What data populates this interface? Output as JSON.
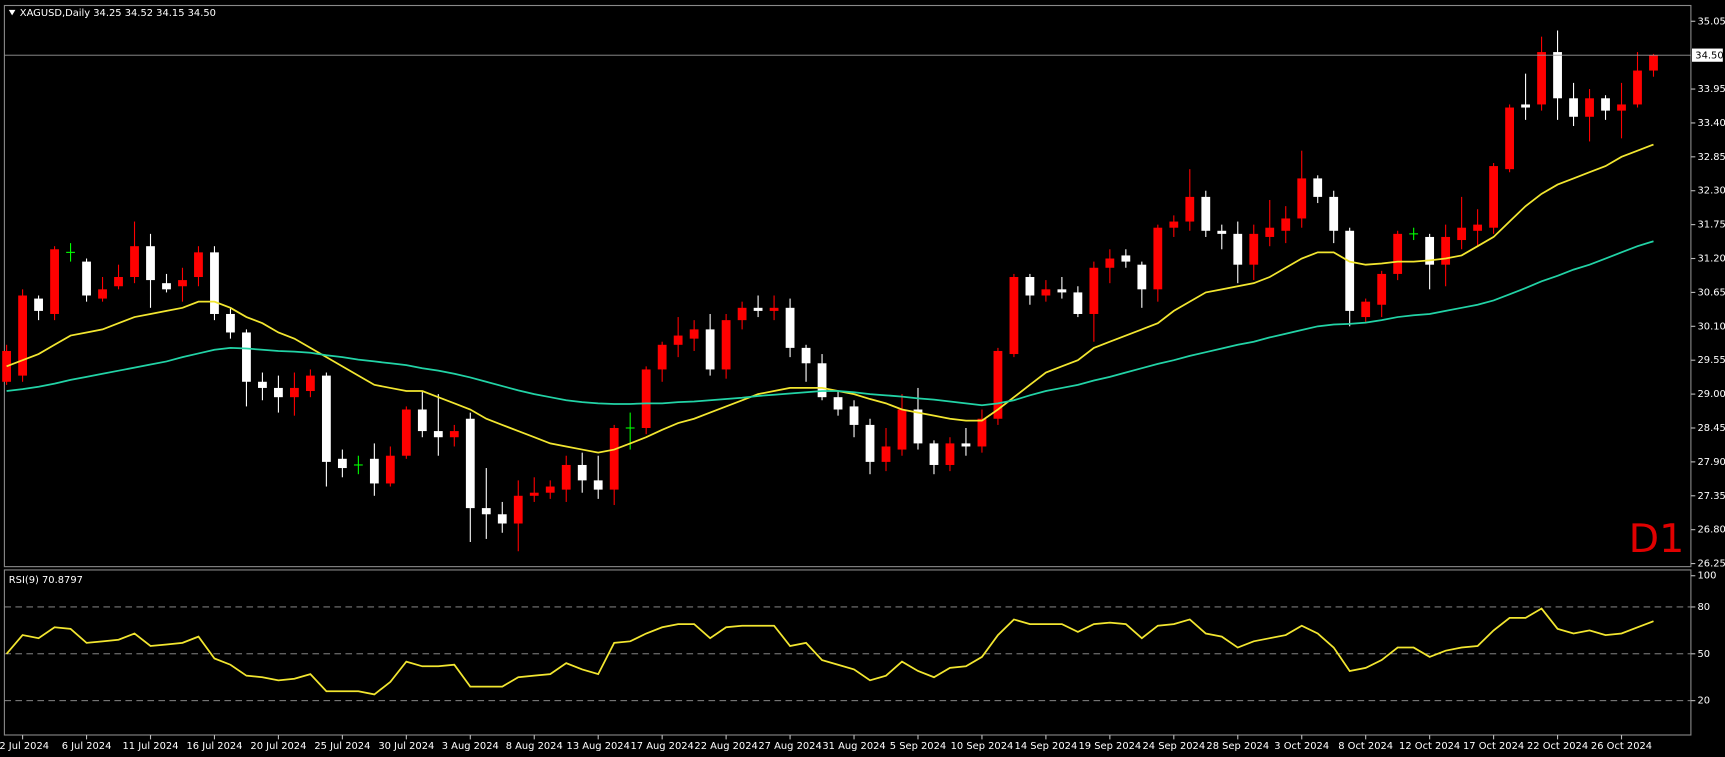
{
  "chart_data": [
    {
      "type": "candlestick",
      "title": "XAGUSD,Daily  34.25 34.52 34.15 34.50",
      "timeframe_label": "D1",
      "categories": [
        null,
        "2 Jul 2024",
        null,
        null,
        null,
        "6 Jul 2024",
        null,
        null,
        null,
        "11 Jul 2024",
        null,
        null,
        null,
        "16 Jul 2024",
        null,
        null,
        null,
        "20 Jul 2024",
        null,
        null,
        null,
        "25 Jul 2024",
        null,
        null,
        null,
        "30 Jul 2024",
        null,
        null,
        null,
        "3 Aug 2024",
        null,
        null,
        null,
        "8 Aug 2024",
        null,
        null,
        null,
        "13 Aug 2024",
        null,
        null,
        null,
        "17 Aug 2024",
        null,
        null,
        null,
        "22 Aug 2024",
        null,
        null,
        null,
        "27 Aug 2024",
        null,
        null,
        null,
        "31 Aug 2024",
        null,
        null,
        null,
        "5 Sep 2024",
        null,
        null,
        null,
        "10 Sep 2024",
        null,
        null,
        null,
        "14 Sep 2024",
        null,
        null,
        null,
        "19 Sep 2024",
        null,
        null,
        null,
        "24 Sep 2024",
        null,
        null,
        null,
        "28 Sep 2024",
        null,
        null,
        null,
        "3 Oct 2024",
        null,
        null,
        null,
        "8 Oct 2024",
        null,
        null,
        null,
        "12 Oct 2024",
        null,
        null,
        null,
        "17 Oct 2024",
        null,
        null,
        null,
        "22 Oct 2024",
        null,
        null,
        null,
        "26 Oct 2024",
        null,
        null
      ],
      "open": [
        29.2,
        29.3,
        30.55,
        30.3,
        31.3,
        31.15,
        30.55,
        30.75,
        30.9,
        31.4,
        30.8,
        30.75,
        30.9,
        31.3,
        30.3,
        30.0,
        29.2,
        29.1,
        28.95,
        29.05,
        29.3,
        27.95,
        27.85,
        27.95,
        27.55,
        28.0,
        28.75,
        28.4,
        28.3,
        28.6,
        27.15,
        27.05,
        26.9,
        27.35,
        27.4,
        27.45,
        27.85,
        27.6,
        27.45,
        28.45,
        28.45,
        29.4,
        29.8,
        29.9,
        30.05,
        29.4,
        30.2,
        30.4,
        30.35,
        30.4,
        29.75,
        29.5,
        28.95,
        28.8,
        28.5,
        27.9,
        28.1,
        28.75,
        28.2,
        27.85,
        28.2,
        28.15,
        28.6,
        29.65,
        30.9,
        30.6,
        30.7,
        30.65,
        30.3,
        31.05,
        31.25,
        31.1,
        30.7,
        31.7,
        31.8,
        32.2,
        31.65,
        31.6,
        31.1,
        31.55,
        31.65,
        31.85,
        32.5,
        32.2,
        31.65,
        30.25,
        30.45,
        30.95,
        31.6,
        31.55,
        31.1,
        31.5,
        31.65,
        31.7,
        32.65,
        33.7,
        33.7,
        34.55,
        33.8,
        33.5,
        33.8,
        33.6,
        33.7,
        34.25
      ],
      "high": [
        29.8,
        30.7,
        30.6,
        31.4,
        31.45,
        31.2,
        30.9,
        31.1,
        31.8,
        31.6,
        30.95,
        31.05,
        31.4,
        31.4,
        30.4,
        30.05,
        29.35,
        29.3,
        29.35,
        29.4,
        29.35,
        28.1,
        28.0,
        28.2,
        28.15,
        28.8,
        29.05,
        29.0,
        28.5,
        28.7,
        27.8,
        27.25,
        27.6,
        27.65,
        27.6,
        28.0,
        28.05,
        28.0,
        28.5,
        28.7,
        29.45,
        29.85,
        30.25,
        30.2,
        30.3,
        30.3,
        30.5,
        30.6,
        30.6,
        30.55,
        29.8,
        29.65,
        29.05,
        28.9,
        28.6,
        28.45,
        29.0,
        29.1,
        28.25,
        28.3,
        28.45,
        28.75,
        29.75,
        30.95,
        30.95,
        30.85,
        30.9,
        30.75,
        31.15,
        31.35,
        31.35,
        31.15,
        31.75,
        31.9,
        32.65,
        32.3,
        31.75,
        31.8,
        31.75,
        32.15,
        32.05,
        32.95,
        32.55,
        32.3,
        31.7,
        30.55,
        31.0,
        31.65,
        31.7,
        31.6,
        31.75,
        32.2,
        32.0,
        32.75,
        33.7,
        34.2,
        34.8,
        34.9,
        34.05,
        33.95,
        33.85,
        34.05,
        34.55,
        34.52
      ],
      "low": [
        29.15,
        29.2,
        30.2,
        30.2,
        31.15,
        30.5,
        30.5,
        30.7,
        30.8,
        30.4,
        30.65,
        30.5,
        30.75,
        30.2,
        29.9,
        28.8,
        28.9,
        28.7,
        28.65,
        28.95,
        27.5,
        27.65,
        27.7,
        27.35,
        27.5,
        27.95,
        28.3,
        28.0,
        28.15,
        26.6,
        26.65,
        26.75,
        26.45,
        27.25,
        27.3,
        27.25,
        27.4,
        27.3,
        27.2,
        28.1,
        28.35,
        29.2,
        29.6,
        29.7,
        29.3,
        29.25,
        30.05,
        30.25,
        30.2,
        29.6,
        29.2,
        28.9,
        28.65,
        28.3,
        27.7,
        27.75,
        28.0,
        28.1,
        27.7,
        27.75,
        28.0,
        28.05,
        28.5,
        29.6,
        30.45,
        30.5,
        30.55,
        30.25,
        29.85,
        30.8,
        31.05,
        30.4,
        30.5,
        31.55,
        31.65,
        31.55,
        31.35,
        30.8,
        30.85,
        31.4,
        31.45,
        31.7,
        32.1,
        31.45,
        30.1,
        30.15,
        30.25,
        30.85,
        31.5,
        30.7,
        30.75,
        31.35,
        31.4,
        31.6,
        32.6,
        33.45,
        33.6,
        33.45,
        33.35,
        33.1,
        33.45,
        33.15,
        33.65,
        34.15
      ],
      "close": [
        29.7,
        30.6,
        30.35,
        31.35,
        31.3,
        30.6,
        30.7,
        30.9,
        31.4,
        30.85,
        30.7,
        30.85,
        31.3,
        30.3,
        30.0,
        29.2,
        29.1,
        28.95,
        29.1,
        29.3,
        27.9,
        27.8,
        27.85,
        27.55,
        28.0,
        28.75,
        28.4,
        28.3,
        28.4,
        27.15,
        27.05,
        26.9,
        27.35,
        27.4,
        27.5,
        27.85,
        27.6,
        27.45,
        28.45,
        28.45,
        29.4,
        29.8,
        29.95,
        30.05,
        29.4,
        30.2,
        30.4,
        30.35,
        30.4,
        29.75,
        29.5,
        28.95,
        28.75,
        28.5,
        27.9,
        28.15,
        28.75,
        28.2,
        27.85,
        28.2,
        28.15,
        28.6,
        29.7,
        30.9,
        30.6,
        30.7,
        30.65,
        30.3,
        31.05,
        31.2,
        31.15,
        30.7,
        31.7,
        31.8,
        32.2,
        31.65,
        31.6,
        31.1,
        31.6,
        31.7,
        31.85,
        32.5,
        32.2,
        31.65,
        30.35,
        30.5,
        30.95,
        31.6,
        31.6,
        31.1,
        31.55,
        31.7,
        31.75,
        32.7,
        33.65,
        33.65,
        34.55,
        33.8,
        33.5,
        33.8,
        33.6,
        33.7,
        34.25,
        34.5
      ],
      "up_color": "#ff0000",
      "down_color": "#ffffff",
      "doji_color": "#00ff00",
      "series": [
        {
          "color": "#f2e630",
          "values": [
            29.45,
            29.55,
            29.65,
            29.8,
            29.95,
            30.0,
            30.05,
            30.15,
            30.25,
            30.3,
            30.35,
            30.4,
            30.5,
            30.5,
            30.4,
            30.25,
            30.15,
            30.0,
            29.9,
            29.75,
            29.6,
            29.45,
            29.3,
            29.15,
            29.1,
            29.05,
            29.05,
            28.95,
            28.85,
            28.75,
            28.6,
            28.5,
            28.4,
            28.3,
            28.2,
            28.15,
            28.1,
            28.05,
            28.1,
            28.2,
            28.3,
            28.42,
            28.53,
            28.6,
            28.7,
            28.8,
            28.9,
            29.0,
            29.05,
            29.1,
            29.1,
            29.1,
            29.05,
            29.0,
            28.92,
            28.85,
            28.75,
            28.7,
            28.65,
            28.6,
            28.57,
            28.57,
            28.75,
            28.95,
            29.15,
            29.35,
            29.45,
            29.55,
            29.75,
            29.85,
            29.95,
            30.05,
            30.15,
            30.35,
            30.5,
            30.65,
            30.7,
            30.75,
            30.8,
            30.9,
            31.05,
            31.2,
            31.3,
            31.3,
            31.15,
            31.1,
            31.12,
            31.15,
            31.15,
            31.17,
            31.2,
            31.25,
            31.4,
            31.55,
            31.8,
            32.05,
            32.25,
            32.4,
            32.5,
            32.6,
            32.7,
            32.85,
            32.95,
            33.05
          ]
        },
        {
          "color": "#22d3a6",
          "values": [
            29.05,
            29.08,
            29.12,
            29.17,
            29.23,
            29.28,
            29.33,
            29.38,
            29.43,
            29.48,
            29.53,
            29.6,
            29.66,
            29.72,
            29.75,
            29.74,
            29.72,
            29.7,
            29.69,
            29.67,
            29.63,
            29.6,
            29.56,
            29.53,
            29.5,
            29.47,
            29.42,
            29.38,
            29.33,
            29.27,
            29.2,
            29.13,
            29.06,
            29.0,
            28.95,
            28.9,
            28.87,
            28.85,
            28.84,
            28.84,
            28.85,
            28.85,
            28.87,
            28.88,
            28.9,
            28.92,
            28.94,
            28.97,
            28.99,
            29.01,
            29.03,
            29.05,
            29.05,
            29.03,
            29.0,
            28.98,
            28.96,
            28.93,
            28.91,
            28.88,
            28.85,
            28.82,
            28.85,
            28.9,
            28.98,
            29.05,
            29.1,
            29.15,
            29.22,
            29.28,
            29.35,
            29.42,
            29.49,
            29.55,
            29.62,
            29.68,
            29.74,
            29.8,
            29.85,
            29.92,
            29.98,
            30.04,
            30.1,
            30.13,
            30.14,
            30.16,
            30.2,
            30.25,
            30.28,
            30.3,
            30.35,
            30.4,
            30.45,
            30.52,
            30.62,
            30.72,
            30.83,
            30.92,
            31.02,
            31.1,
            31.2,
            31.3,
            31.4,
            31.48
          ]
        }
      ],
      "ylim": [
        26.2,
        35.27
      ],
      "yticks": [
        35.05,
        33.95,
        {
          "value": 33.4,
          "label": "33.40"
        },
        32.85,
        {
          "value": 32.3,
          "label": "32.30"
        },
        31.75,
        {
          "value": 31.2,
          "label": "31.20"
        },
        30.65,
        {
          "value": 30.1,
          "label": "30.10"
        },
        29.55,
        {
          "value": 29,
          "label": "29.00"
        },
        28.45,
        {
          "value": 27.9,
          "label": "27.90"
        },
        27.35,
        {
          "value": 26.8,
          "label": "26.80"
        },
        26.25
      ],
      "price_line": {
        "value": 34.5,
        "label": "34.50"
      }
    },
    {
      "type": "line",
      "title": "RSI(9) 70.8797",
      "color": "#f2e630",
      "values": [
        50,
        62,
        60,
        67,
        66,
        57,
        58,
        59,
        63,
        55,
        56,
        57,
        61,
        47,
        43,
        36,
        35,
        33,
        34,
        37,
        26,
        26,
        26,
        24,
        32,
        45,
        42,
        42,
        43,
        29,
        29,
        29,
        35,
        36,
        37,
        44,
        40,
        37,
        57,
        58,
        63,
        67,
        69,
        69,
        60,
        67,
        68,
        68,
        68,
        55,
        57,
        46,
        43,
        40,
        33,
        36,
        45,
        39,
        35,
        41,
        42,
        48,
        62,
        72,
        69,
        69,
        69,
        64,
        69,
        70,
        69,
        60,
        68,
        69,
        72,
        63,
        61,
        54,
        58,
        60,
        62,
        68,
        63,
        54,
        39,
        41,
        46,
        54,
        54,
        48,
        52,
        54,
        55,
        65,
        73,
        73,
        79,
        66,
        63,
        65,
        62,
        63,
        67,
        70.8797
      ],
      "ylim": [
        -2,
        103
      ],
      "yticks": [
        100,
        80,
        50,
        20
      ],
      "levels": [
        80,
        50,
        20
      ]
    }
  ]
}
